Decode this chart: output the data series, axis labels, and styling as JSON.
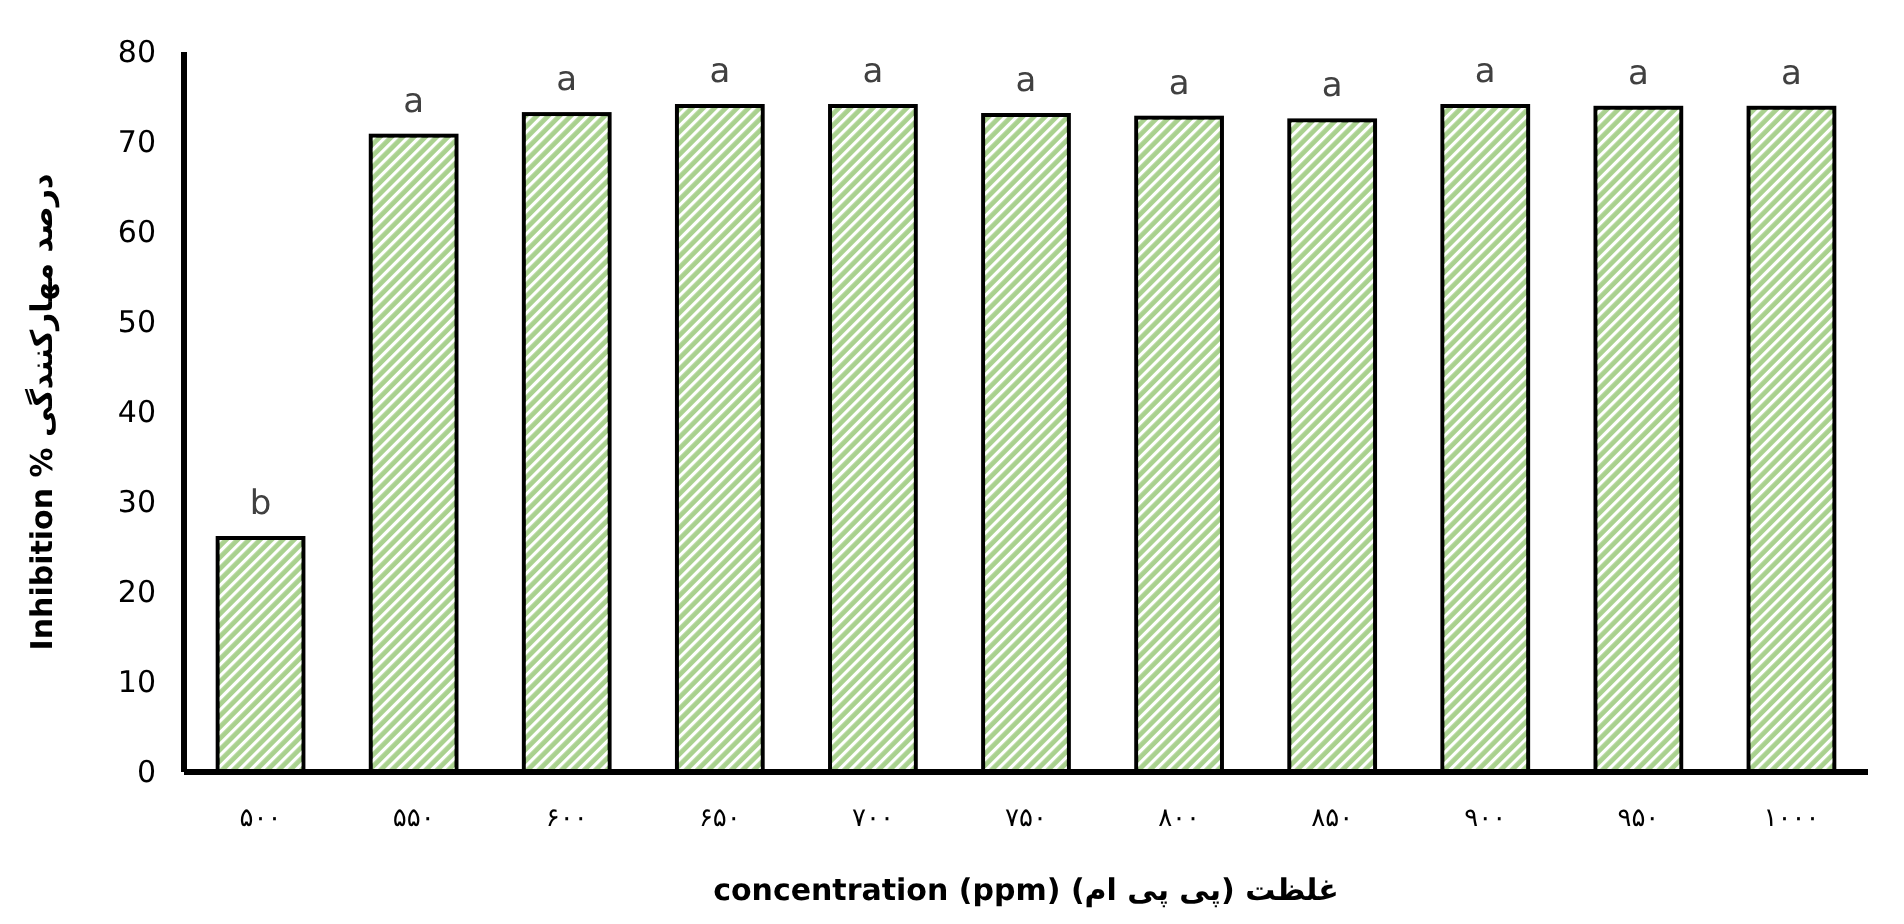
{
  "chart_data": {
    "type": "bar",
    "xlabel": "غلظت (پی پی ام) concentration (ppm)",
    "ylabel": "Inhibition % درصد مهارکنندگی",
    "categories": [
      "۵۰۰",
      "۵۵۰",
      "۶۰۰",
      "۶۵۰",
      "۷۰۰",
      "۷۵۰",
      "۸۰۰",
      "۸۵۰",
      "۹۰۰",
      "۹۵۰",
      "۱۰۰۰"
    ],
    "values": [
      26,
      70.7,
      73.1,
      74,
      74,
      73,
      72.7,
      72.4,
      74,
      73.8,
      73.8
    ],
    "value_labels": [
      "b",
      "a",
      "a",
      "a",
      "a",
      "a",
      "a",
      "a",
      "a",
      "a",
      "a"
    ],
    "color": "#a9d18e",
    "ylim": [
      0,
      80
    ],
    "yticks": [
      0,
      10,
      20,
      30,
      40,
      50,
      60,
      70,
      80
    ],
    "grid": false
  }
}
